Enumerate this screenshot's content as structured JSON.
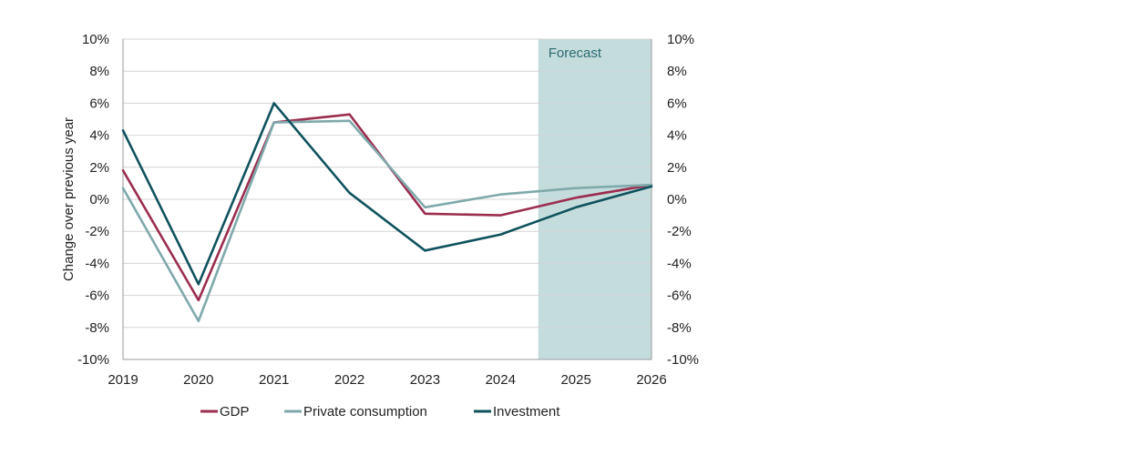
{
  "chart_data": {
    "type": "line",
    "x": [
      2019,
      2020,
      2021,
      2022,
      2023,
      2024,
      2025,
      2026
    ],
    "x_tick_labels": [
      "2019",
      "2020",
      "2021",
      "2022",
      "2023",
      "2024",
      "2025",
      "2026"
    ],
    "ylim": [
      -10,
      10
    ],
    "y_ticks": [
      -10,
      -8,
      -6,
      -4,
      -2,
      0,
      2,
      4,
      6,
      8,
      10
    ],
    "y_tick_labels": [
      "-10%",
      "-8%",
      "-6%",
      "-4%",
      "-2%",
      "0%",
      "2%",
      "4%",
      "6%",
      "8%",
      "10%"
    ],
    "y_tick_labels_right": [
      "-10%",
      "-8%",
      "-6%",
      "-4%",
      "-2%",
      "0%",
      "2%",
      "4%",
      "6%",
      "8%",
      "10%"
    ],
    "ylabel": "Change over previous year",
    "grid": "horizontal",
    "legend_position": "bottom",
    "forecast": {
      "label": "Forecast",
      "x_start": 2024.5,
      "x_end": 2026,
      "color": "#c5dcdd",
      "label_color": "#2b6b74"
    },
    "series": [
      {
        "name": "GDP",
        "color": "#9b2d4e",
        "values": [
          1.8,
          -6.3,
          4.8,
          5.3,
          -0.9,
          -1.0,
          0.1,
          0.9
        ]
      },
      {
        "name": "Private consumption",
        "color": "#7fa9ab",
        "values": [
          0.7,
          -7.6,
          4.8,
          4.9,
          -0.5,
          0.3,
          0.7,
          0.9
        ]
      },
      {
        "name": "Investment",
        "color": "#0f525e",
        "values": [
          4.3,
          -5.3,
          6.0,
          0.4,
          -3.2,
          -2.2,
          -0.5,
          0.8
        ]
      }
    ]
  }
}
